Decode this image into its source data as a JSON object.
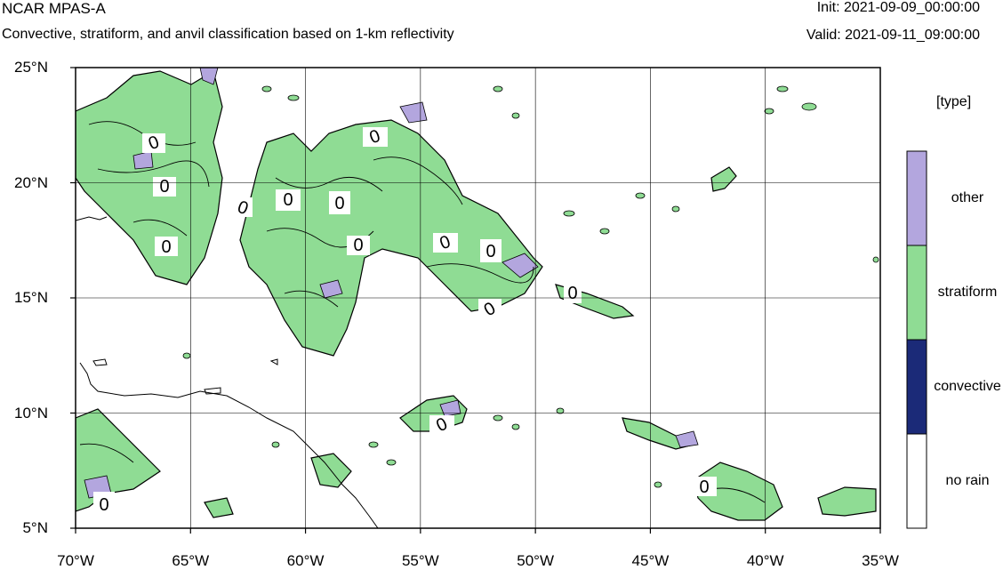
{
  "header": {
    "title": "NCAR MPAS-A",
    "subtitle": "Convective, stratiform, and anvil classification based on 1-km reflectivity",
    "init": "Init: 2021-09-09_00:00:00",
    "valid": "Valid: 2021-09-11_09:00:00"
  },
  "map": {
    "lon_range": [
      -70,
      -35
    ],
    "lat_range": [
      5,
      25
    ],
    "lat_ticks": [
      {
        "value": 25,
        "label": "25°N"
      },
      {
        "value": 20,
        "label": "20°N"
      },
      {
        "value": 15,
        "label": "15°N"
      },
      {
        "value": 10,
        "label": "10°N"
      },
      {
        "value": 5,
        "label": "5°N"
      }
    ],
    "lon_ticks": [
      {
        "value": -70,
        "label": "70°W"
      },
      {
        "value": -65,
        "label": "65°W"
      },
      {
        "value": -60,
        "label": "60°W"
      },
      {
        "value": -55,
        "label": "55°W"
      },
      {
        "value": -50,
        "label": "50°W"
      },
      {
        "value": -45,
        "label": "45°W"
      },
      {
        "value": -40,
        "label": "40°W"
      },
      {
        "value": -35,
        "label": "35°W"
      }
    ],
    "contour_label": "0",
    "colors": {
      "other": "#b3a6de",
      "stratiform": "#8fdc94",
      "convective": "#1b2a78",
      "no_rain": "#ffffff",
      "outline": "#000000"
    }
  },
  "legend": {
    "title": "[type]",
    "entries": [
      {
        "label": "other",
        "color": "#b3a6de"
      },
      {
        "label": "stratiform",
        "color": "#8fdc94"
      },
      {
        "label": "convective",
        "color": "#1b2a78"
      },
      {
        "label": "no rain",
        "color": "#ffffff"
      }
    ]
  }
}
